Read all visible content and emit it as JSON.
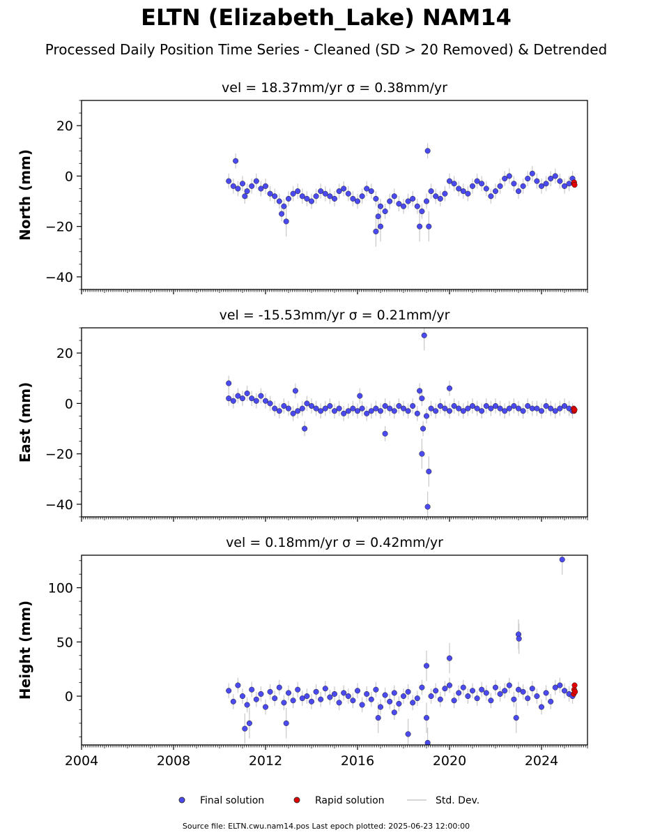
{
  "title": "ELTN (Elizabeth_Lake) NAM14",
  "subtitle": "Processed Daily Position Time Series - Cleaned (SD > 20 Removed) & Detrended",
  "legend": {
    "final": "Final solution",
    "rapid": "Rapid solution",
    "std": "Std. Dev."
  },
  "source_note": "Source file: ELTN.cwu.nam14.pos  Last epoch plotted: 2025-06-23 12:00:00",
  "colors": {
    "final": "#4a4af0",
    "rapid": "#e00000",
    "std": "#c8c8c8",
    "axis": "#000000"
  },
  "chart_data": [
    {
      "type": "scatter",
      "panel_title": "vel = 18.37mm/yr   σ = 0.38mm/yr",
      "ylabel": "North (mm)",
      "xlim": [
        2004.0,
        2026.0
      ],
      "ylim": [
        -45,
        30
      ],
      "x_ticks": [
        2004,
        2008,
        2012,
        2016,
        2020,
        2024
      ],
      "y_ticks": [
        -40,
        -20,
        0,
        20
      ],
      "y_tick_labels": [
        "−40",
        "−20",
        "0",
        "20"
      ],
      "show_x_tick_labels": false,
      "series": [
        {
          "name": "Final solution",
          "x": [
            2010.4,
            2010.6,
            2010.8,
            2011.0,
            2011.2,
            2011.4,
            2011.6,
            2011.8,
            2012.0,
            2012.2,
            2012.4,
            2012.6,
            2012.8,
            2013.0,
            2013.2,
            2013.4,
            2013.6,
            2013.8,
            2014.0,
            2014.2,
            2014.4,
            2014.6,
            2014.8,
            2015.0,
            2015.2,
            2015.4,
            2015.6,
            2015.8,
            2016.0,
            2016.2,
            2016.4,
            2016.6,
            2016.8,
            2017.0,
            2017.2,
            2017.4,
            2017.6,
            2017.8,
            2018.0,
            2018.2,
            2018.4,
            2018.6,
            2018.8,
            2019.0,
            2019.2,
            2019.4,
            2019.6,
            2019.8,
            2020.0,
            2020.2,
            2020.4,
            2020.6,
            2020.8,
            2021.0,
            2021.2,
            2021.4,
            2021.6,
            2021.8,
            2022.0,
            2022.2,
            2022.4,
            2022.6,
            2022.8,
            2023.0,
            2023.2,
            2023.4,
            2023.6,
            2023.8,
            2024.0,
            2024.2,
            2024.4,
            2024.6,
            2024.8,
            2025.0,
            2025.2,
            2025.35,
            2010.7,
            2011.1,
            2012.9,
            2016.8,
            2017.0,
            2018.7,
            2019.05,
            2019.1,
            2016.9,
            2012.7
          ],
          "y": [
            -2,
            -4,
            -5,
            -3,
            -6,
            -4,
            -2,
            -5,
            -4,
            -7,
            -8,
            -10,
            -12,
            -9,
            -7,
            -6,
            -8,
            -9,
            -10,
            -8,
            -6,
            -7,
            -8,
            -9,
            -6,
            -5,
            -7,
            -9,
            -10,
            -8,
            -5,
            -6,
            -9,
            -12,
            -14,
            -10,
            -8,
            -11,
            -12,
            -10,
            -9,
            -12,
            -14,
            -10,
            -6,
            -8,
            -9,
            -7,
            -2,
            -3,
            -5,
            -6,
            -7,
            -4,
            -2,
            -3,
            -5,
            -8,
            -6,
            -4,
            -1,
            0,
            -3,
            -6,
            -4,
            -1,
            1,
            -2,
            -4,
            -3,
            -1,
            0,
            -2,
            -4,
            -3,
            -1,
            6,
            -8,
            -18,
            -22,
            -20,
            -20,
            10,
            -20,
            -16,
            -15
          ]
        },
        {
          "name": "Rapid solution",
          "x": [
            2025.4,
            2025.42,
            2025.44
          ],
          "y": [
            -3,
            -2.5,
            -3.5
          ]
        }
      ]
    },
    {
      "type": "scatter",
      "panel_title": "vel = -15.53mm/yr   σ = 0.21mm/yr",
      "ylabel": "East (mm)",
      "xlim": [
        2004.0,
        2026.0
      ],
      "ylim": [
        -45,
        30
      ],
      "x_ticks": [
        2004,
        2008,
        2012,
        2016,
        2020,
        2024
      ],
      "y_ticks": [
        -40,
        -20,
        0,
        20
      ],
      "y_tick_labels": [
        "−40",
        "−20",
        "0",
        "20"
      ],
      "show_x_tick_labels": false,
      "series": [
        {
          "name": "Final solution",
          "x": [
            2010.4,
            2010.6,
            2010.8,
            2011.0,
            2011.2,
            2011.4,
            2011.6,
            2011.8,
            2012.0,
            2012.2,
            2012.4,
            2012.6,
            2012.8,
            2013.0,
            2013.2,
            2013.4,
            2013.6,
            2013.8,
            2014.0,
            2014.2,
            2014.4,
            2014.6,
            2014.8,
            2015.0,
            2015.2,
            2015.4,
            2015.6,
            2015.8,
            2016.0,
            2016.2,
            2016.4,
            2016.6,
            2016.8,
            2017.0,
            2017.2,
            2017.4,
            2017.6,
            2017.8,
            2018.0,
            2018.2,
            2018.4,
            2018.6,
            2018.8,
            2019.0,
            2019.2,
            2019.4,
            2019.6,
            2019.8,
            2020.0,
            2020.2,
            2020.4,
            2020.6,
            2020.8,
            2021.0,
            2021.2,
            2021.4,
            2021.6,
            2021.8,
            2022.0,
            2022.2,
            2022.4,
            2022.6,
            2022.8,
            2023.0,
            2023.2,
            2023.4,
            2023.6,
            2023.8,
            2024.0,
            2024.2,
            2024.4,
            2024.6,
            2024.8,
            2025.0,
            2025.2,
            2025.35,
            2010.4,
            2013.3,
            2013.7,
            2017.2,
            2016.1,
            2018.8,
            2018.9,
            2019.05,
            2019.1,
            2018.85,
            2020.0,
            2018.7
          ],
          "y": [
            2,
            1,
            3,
            2,
            4,
            2,
            1,
            3,
            1,
            0,
            -2,
            -3,
            -1,
            -2,
            -4,
            -3,
            -2,
            0,
            -1,
            -2,
            -3,
            -2,
            -1,
            -3,
            -2,
            -4,
            -3,
            -2,
            -3,
            -2,
            -4,
            -3,
            -2,
            -3,
            -1,
            -2,
            -3,
            -1,
            -2,
            -3,
            -1,
            -4,
            2,
            -5,
            -2,
            -3,
            -1,
            -2,
            -3,
            -1,
            -2,
            -3,
            -2,
            -1,
            -2,
            -3,
            -1,
            -2,
            -1,
            -2,
            -3,
            -2,
            -1,
            -2,
            -3,
            -1,
            -2,
            -2,
            -3,
            -1,
            -2,
            -3,
            -2,
            -1,
            -2,
            -3,
            8,
            5,
            -10,
            -12,
            3,
            -20,
            27,
            -41,
            -27,
            -10,
            6,
            5
          ]
        },
        {
          "name": "Rapid solution",
          "x": [
            2025.4,
            2025.42,
            2025.44
          ],
          "y": [
            -2,
            -3,
            -2.5
          ]
        }
      ]
    },
    {
      "type": "scatter",
      "panel_title": "vel = 0.18mm/yr   σ = 0.42mm/yr",
      "ylabel": "Height (mm)",
      "xlim": [
        2004.0,
        2026.0
      ],
      "ylim": [
        -45,
        130
      ],
      "x_ticks": [
        2004,
        2008,
        2012,
        2016,
        2020,
        2024
      ],
      "y_ticks": [
        0,
        50,
        100
      ],
      "y_tick_labels": [
        "0",
        "50",
        "100"
      ],
      "show_x_tick_labels": true,
      "series": [
        {
          "name": "Final solution",
          "x": [
            2010.4,
            2010.6,
            2010.8,
            2011.0,
            2011.2,
            2011.4,
            2011.6,
            2011.8,
            2012.0,
            2012.2,
            2012.4,
            2012.6,
            2012.8,
            2013.0,
            2013.2,
            2013.4,
            2013.6,
            2013.8,
            2014.0,
            2014.2,
            2014.4,
            2014.6,
            2014.8,
            2015.0,
            2015.2,
            2015.4,
            2015.6,
            2015.8,
            2016.0,
            2016.2,
            2016.4,
            2016.6,
            2016.8,
            2017.0,
            2017.2,
            2017.4,
            2017.6,
            2017.8,
            2018.0,
            2018.2,
            2018.4,
            2018.6,
            2018.8,
            2019.0,
            2019.2,
            2019.4,
            2019.6,
            2019.8,
            2020.0,
            2020.2,
            2020.4,
            2020.6,
            2020.8,
            2021.0,
            2021.2,
            2021.4,
            2021.6,
            2021.8,
            2022.0,
            2022.2,
            2022.4,
            2022.6,
            2022.8,
            2023.0,
            2023.2,
            2023.4,
            2023.6,
            2023.8,
            2024.0,
            2024.2,
            2024.4,
            2024.6,
            2024.8,
            2025.0,
            2025.2,
            2025.35,
            2011.1,
            2011.3,
            2012.9,
            2018.2,
            2019.05,
            2019.0,
            2020.0,
            2023.0,
            2023.02,
            2024.9,
            2016.9,
            2017.6,
            2022.9
          ],
          "y": [
            5,
            -5,
            10,
            0,
            -8,
            6,
            -3,
            2,
            -10,
            4,
            -2,
            8,
            -6,
            3,
            -4,
            6,
            -2,
            0,
            -5,
            4,
            -3,
            7,
            -1,
            2,
            -6,
            3,
            0,
            -4,
            5,
            -8,
            2,
            -3,
            6,
            -10,
            1,
            -5,
            3,
            -7,
            0,
            4,
            -6,
            -2,
            8,
            -20,
            0,
            5,
            -3,
            7,
            10,
            -4,
            3,
            8,
            0,
            5,
            -2,
            6,
            3,
            -4,
            8,
            2,
            5,
            10,
            -3,
            6,
            4,
            -2,
            7,
            0,
            -10,
            3,
            -5,
            8,
            10,
            5,
            2,
            0,
            -30,
            -25,
            -25,
            -35,
            -43,
            28,
            35,
            57,
            53,
            126,
            -20,
            -15,
            -20
          ]
        },
        {
          "name": "Rapid solution",
          "x": [
            2025.4,
            2025.42,
            2025.44,
            2025.46
          ],
          "y": [
            2,
            6,
            10,
            4
          ]
        }
      ]
    }
  ]
}
